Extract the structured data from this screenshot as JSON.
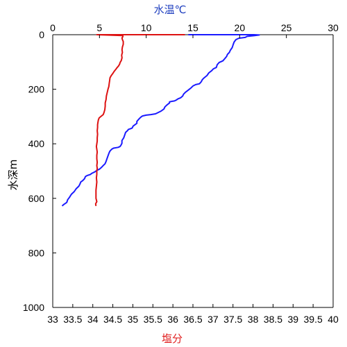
{
  "chart_data": {
    "type": "line",
    "top_axis": {
      "label": "水温℃",
      "label_color": "#1f3fbf",
      "range": [
        0,
        30
      ],
      "ticks": [
        "0",
        "5",
        "10",
        "15",
        "20",
        "25",
        "30"
      ]
    },
    "bottom_axis": {
      "label": "塩分",
      "label_color": "#e02020",
      "range": [
        33,
        40
      ],
      "ticks": [
        "33",
        "33.5",
        "34",
        "34.5",
        "35",
        "35.5",
        "36",
        "36.5",
        "37",
        "37.5",
        "38",
        "38.5",
        "39",
        "39.5",
        "40"
      ]
    },
    "left_axis": {
      "label": "水深m",
      "range": [
        0,
        1000
      ],
      "inverted": true,
      "ticks": [
        "0",
        "200",
        "400",
        "600",
        "800",
        "1000"
      ]
    },
    "grid": false,
    "series": [
      {
        "axis": "top",
        "color": "#1a1aff",
        "points": [
          [
            14.5,
            0
          ],
          [
            21.5,
            0
          ],
          [
            22.1,
            1
          ],
          [
            21.6,
            3
          ],
          [
            20.8,
            6
          ],
          [
            20.6,
            10
          ],
          [
            19.9,
            13
          ],
          [
            19.6,
            18
          ],
          [
            19.4,
            27
          ],
          [
            19.3,
            37
          ],
          [
            19.2,
            47
          ],
          [
            19.0,
            57
          ],
          [
            18.9,
            65
          ],
          [
            18.7,
            72
          ],
          [
            18.6,
            80
          ],
          [
            18.4,
            88
          ],
          [
            18.2,
            96
          ],
          [
            17.8,
            102
          ],
          [
            17.6,
            110
          ],
          [
            17.5,
            120
          ],
          [
            17.2,
            125
          ],
          [
            17.0,
            132
          ],
          [
            16.7,
            140
          ],
          [
            16.5,
            150
          ],
          [
            16.2,
            158
          ],
          [
            16.0,
            165
          ],
          [
            15.9,
            172
          ],
          [
            15.7,
            180
          ],
          [
            15.3,
            183
          ],
          [
            15.0,
            188
          ],
          [
            14.8,
            195
          ],
          [
            14.5,
            203
          ],
          [
            14.2,
            211
          ],
          [
            14.0,
            218
          ],
          [
            13.9,
            225
          ],
          [
            13.7,
            231
          ],
          [
            13.4,
            235
          ],
          [
            13.2,
            240
          ],
          [
            13.0,
            243
          ],
          [
            12.8,
            244
          ],
          [
            12.5,
            246
          ],
          [
            12.5,
            250
          ],
          [
            12.2,
            258
          ],
          [
            12.0,
            265
          ],
          [
            11.9,
            272
          ],
          [
            11.6,
            280
          ],
          [
            11.3,
            285
          ],
          [
            11.0,
            290
          ],
          [
            10.5,
            293
          ],
          [
            10.0,
            295
          ],
          [
            9.6,
            298
          ],
          [
            9.4,
            303
          ],
          [
            9.2,
            310
          ],
          [
            9.0,
            318
          ],
          [
            9.0,
            325
          ],
          [
            8.8,
            330
          ],
          [
            8.6,
            335
          ],
          [
            8.5,
            342
          ],
          [
            8.3,
            345
          ],
          [
            8.1,
            347
          ],
          [
            8.0,
            352
          ],
          [
            7.8,
            358
          ],
          [
            7.7,
            368
          ],
          [
            7.6,
            378
          ],
          [
            7.4,
            388
          ],
          [
            7.4,
            398
          ],
          [
            7.3,
            405
          ],
          [
            7.2,
            410
          ],
          [
            7.0,
            413
          ],
          [
            6.5,
            416
          ],
          [
            6.3,
            420
          ],
          [
            6.1,
            428
          ],
          [
            6.0,
            436
          ],
          [
            5.9,
            445
          ],
          [
            5.8,
            455
          ],
          [
            5.7,
            465
          ],
          [
            5.6,
            473
          ],
          [
            5.4,
            480
          ],
          [
            5.2,
            487
          ],
          [
            5.0,
            493
          ],
          [
            4.7,
            498
          ],
          [
            4.5,
            503
          ],
          [
            4.2,
            508
          ],
          [
            4.0,
            513
          ],
          [
            3.7,
            516
          ],
          [
            3.5,
            520
          ],
          [
            3.4,
            528
          ],
          [
            3.2,
            535
          ],
          [
            3.0,
            540
          ],
          [
            2.9,
            548
          ],
          [
            2.8,
            555
          ],
          [
            2.5,
            565
          ],
          [
            2.3,
            575
          ],
          [
            2.0,
            585
          ],
          [
            1.8,
            596
          ],
          [
            1.6,
            605
          ],
          [
            1.5,
            615
          ],
          [
            1.2,
            622
          ],
          [
            1.0,
            628
          ]
        ]
      },
      {
        "axis": "bottom",
        "color": "#dd1111",
        "points": [
          [
            36.3,
            0
          ],
          [
            34.1,
            0
          ],
          [
            34.75,
            3
          ],
          [
            34.75,
            7
          ],
          [
            34.73,
            12
          ],
          [
            34.74,
            18
          ],
          [
            34.76,
            25
          ],
          [
            34.76,
            35
          ],
          [
            34.74,
            45
          ],
          [
            34.73,
            55
          ],
          [
            34.74,
            65
          ],
          [
            34.72,
            75
          ],
          [
            34.73,
            85
          ],
          [
            34.71,
            95
          ],
          [
            34.68,
            102
          ],
          [
            34.67,
            108
          ],
          [
            34.64,
            115
          ],
          [
            34.6,
            122
          ],
          [
            34.57,
            128
          ],
          [
            34.53,
            135
          ],
          [
            34.5,
            142
          ],
          [
            34.46,
            150
          ],
          [
            34.43,
            158
          ],
          [
            34.42,
            168
          ],
          [
            34.41,
            178
          ],
          [
            34.4,
            190
          ],
          [
            34.38,
            200
          ],
          [
            34.36,
            212
          ],
          [
            34.34,
            225
          ],
          [
            34.33,
            238
          ],
          [
            34.31,
            250
          ],
          [
            34.31,
            262
          ],
          [
            34.3,
            275
          ],
          [
            34.28,
            285
          ],
          [
            34.26,
            293
          ],
          [
            34.2,
            300
          ],
          [
            34.16,
            305
          ],
          [
            34.14,
            312
          ],
          [
            34.13,
            320
          ],
          [
            34.12,
            330
          ],
          [
            34.12,
            340
          ],
          [
            34.11,
            352
          ],
          [
            34.12,
            365
          ],
          [
            34.11,
            378
          ],
          [
            34.11,
            390
          ],
          [
            34.1,
            400
          ],
          [
            34.09,
            410
          ],
          [
            34.1,
            420
          ],
          [
            34.11,
            430
          ],
          [
            34.1,
            442
          ],
          [
            34.1,
            455
          ],
          [
            34.11,
            468
          ],
          [
            34.1,
            480
          ],
          [
            34.11,
            490
          ],
          [
            34.1,
            500
          ],
          [
            34.1,
            512
          ],
          [
            34.09,
            525
          ],
          [
            34.1,
            540
          ],
          [
            34.09,
            555
          ],
          [
            34.08,
            570
          ],
          [
            34.08,
            585
          ],
          [
            34.08,
            600
          ],
          [
            34.1,
            612
          ],
          [
            34.07,
            620
          ],
          [
            34.08,
            628
          ]
        ]
      }
    ]
  }
}
